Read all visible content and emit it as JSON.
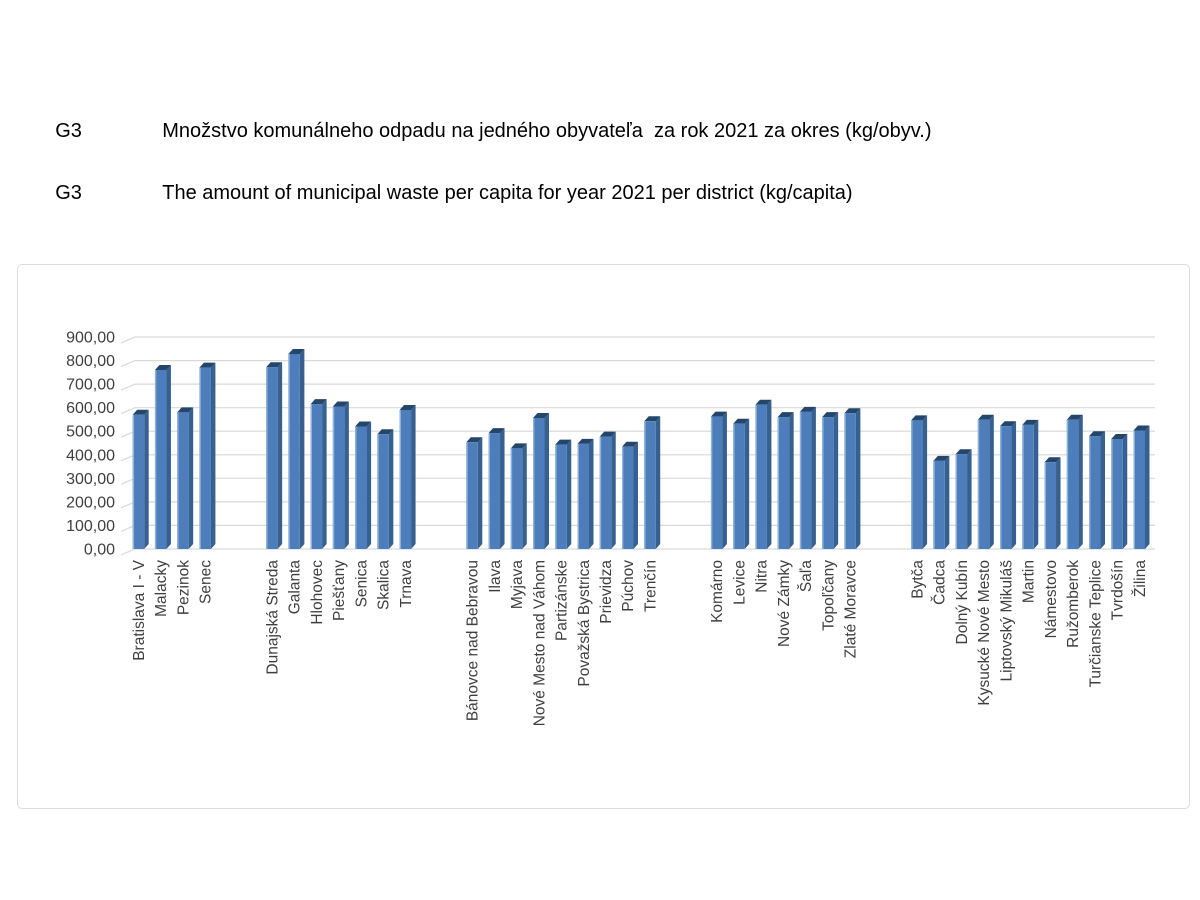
{
  "page": {
    "row1": {
      "code": "G3",
      "title": "Množstvo komunálneho odpadu na jedného obyvateľa  za rok 2021 za okres (kg/obyv.)"
    },
    "row2": {
      "code": "G3",
      "title": "The amount of municipal waste per capita for year 2021 per district (kg/capita)"
    }
  },
  "chart_data": {
    "type": "bar",
    "title_sk": "Množstvo komunálneho odpadu na jedného obyvateľa za rok 2021 za okres (kg/obyv.)",
    "title_en": "The amount of municipal waste per capita for year 2021 per district (kg/capita)",
    "xlabel": "",
    "ylabel": "kg/capita",
    "ylim": [
      0,
      900
    ],
    "y_axis": {
      "min": 0,
      "max": 900,
      "step": 100,
      "tick_labels": [
        "900,00",
        "800,00",
        "700,00",
        "600,00",
        "500,00",
        "400,00",
        "300,00",
        "200,00",
        "100,00",
        "0,00"
      ]
    },
    "grid": true,
    "legend": false,
    "effect": "3d-column",
    "group_gap_slots": 2,
    "groups": [
      {
        "categories": [
          "Bratislava I - V",
          "Malacky",
          "Pezinok",
          "Senec"
        ],
        "values": [
          570,
          760,
          580,
          770
        ]
      },
      {
        "categories": [
          "Dunajská Streda",
          "Galanta",
          "Hlohovec",
          "Piešťany",
          "Senica",
          "Skalica",
          "Trnava"
        ],
        "values": [
          772,
          828,
          615,
          605,
          520,
          487,
          590
        ]
      },
      {
        "categories": [
          "Bánovce nad Bebravou",
          "Ilava",
          "Myjava",
          "Nové Mesto nad Váhom",
          "Partizánske",
          "Považská Bystrica",
          "Prievidza",
          "Púchov",
          "Trenčín"
        ],
        "values": [
          453,
          492,
          427,
          556,
          443,
          446,
          477,
          434,
          542
        ]
      },
      {
        "categories": [
          "Komárno",
          "Levice",
          "Nitra",
          "Nové Zámky",
          "Šaľa",
          "Topoľčany",
          "Zlaté Moravce"
        ],
        "values": [
          562,
          532,
          612,
          560,
          582,
          560,
          576
        ]
      },
      {
        "categories": [
          "Bytča",
          "Čadca",
          "Dolný Kubín",
          "Kysucké Nové Mesto",
          "Liptovský Mikuláš",
          "Martin",
          "Námestovo",
          "Ružomberok",
          "Turčianske Teplice",
          "Tvrdošín",
          "Žilina"
        ],
        "values": [
          546,
          374,
          402,
          549,
          521,
          527,
          368,
          549,
          479,
          467,
          503
        ]
      }
    ],
    "colors": {
      "bar_front": "#4d7dba",
      "bar_top": "#24466b",
      "bar_side": "#36608f",
      "bar_highlight": "#8fb2d9",
      "gridline": "#d9d9d9",
      "axis_text": "#3f3f3f",
      "frame_border": "#dcdcdc"
    }
  }
}
